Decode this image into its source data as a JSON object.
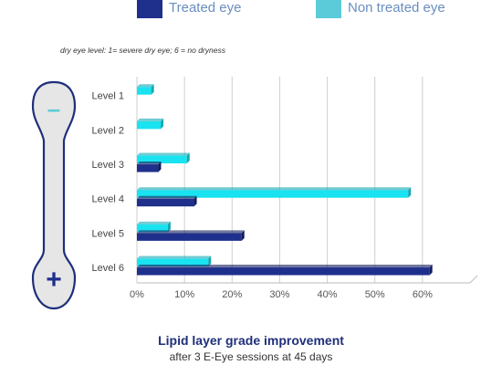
{
  "legend": [
    {
      "label": "Treated eye",
      "color": "#1f2f8c"
    },
    {
      "label": "Non treated eye",
      "color": "#5bcbd9"
    }
  ],
  "subtitle": "dry eye level: 1= severe dry eye; 6 = no dryness",
  "thermometer": {
    "top_label": "–",
    "bottom_label": "+"
  },
  "caption": {
    "title": "Lipid layer grade improvement",
    "subtitle": "after 3 E-Eye sessions at 45 days"
  },
  "colors": {
    "treated": "#1f2f8c",
    "non_treated": "#19e3f0"
  },
  "chart_data": {
    "type": "bar",
    "orientation": "horizontal",
    "categories": [
      "Level 1",
      "Level 2",
      "Level 3",
      "Level 4",
      "Level 5",
      "Level 6"
    ],
    "series": [
      {
        "name": "Non treated eye",
        "values": [
          3,
          5,
          10.5,
          57,
          6.5,
          15
        ]
      },
      {
        "name": "Treated eye",
        "values": [
          0,
          0,
          4.5,
          12,
          22,
          61.5
        ]
      }
    ],
    "xticks": [
      "0%",
      "10%",
      "20%",
      "30%",
      "40%",
      "50%",
      "60%"
    ],
    "xlim": [
      0,
      70
    ],
    "grid": true
  }
}
